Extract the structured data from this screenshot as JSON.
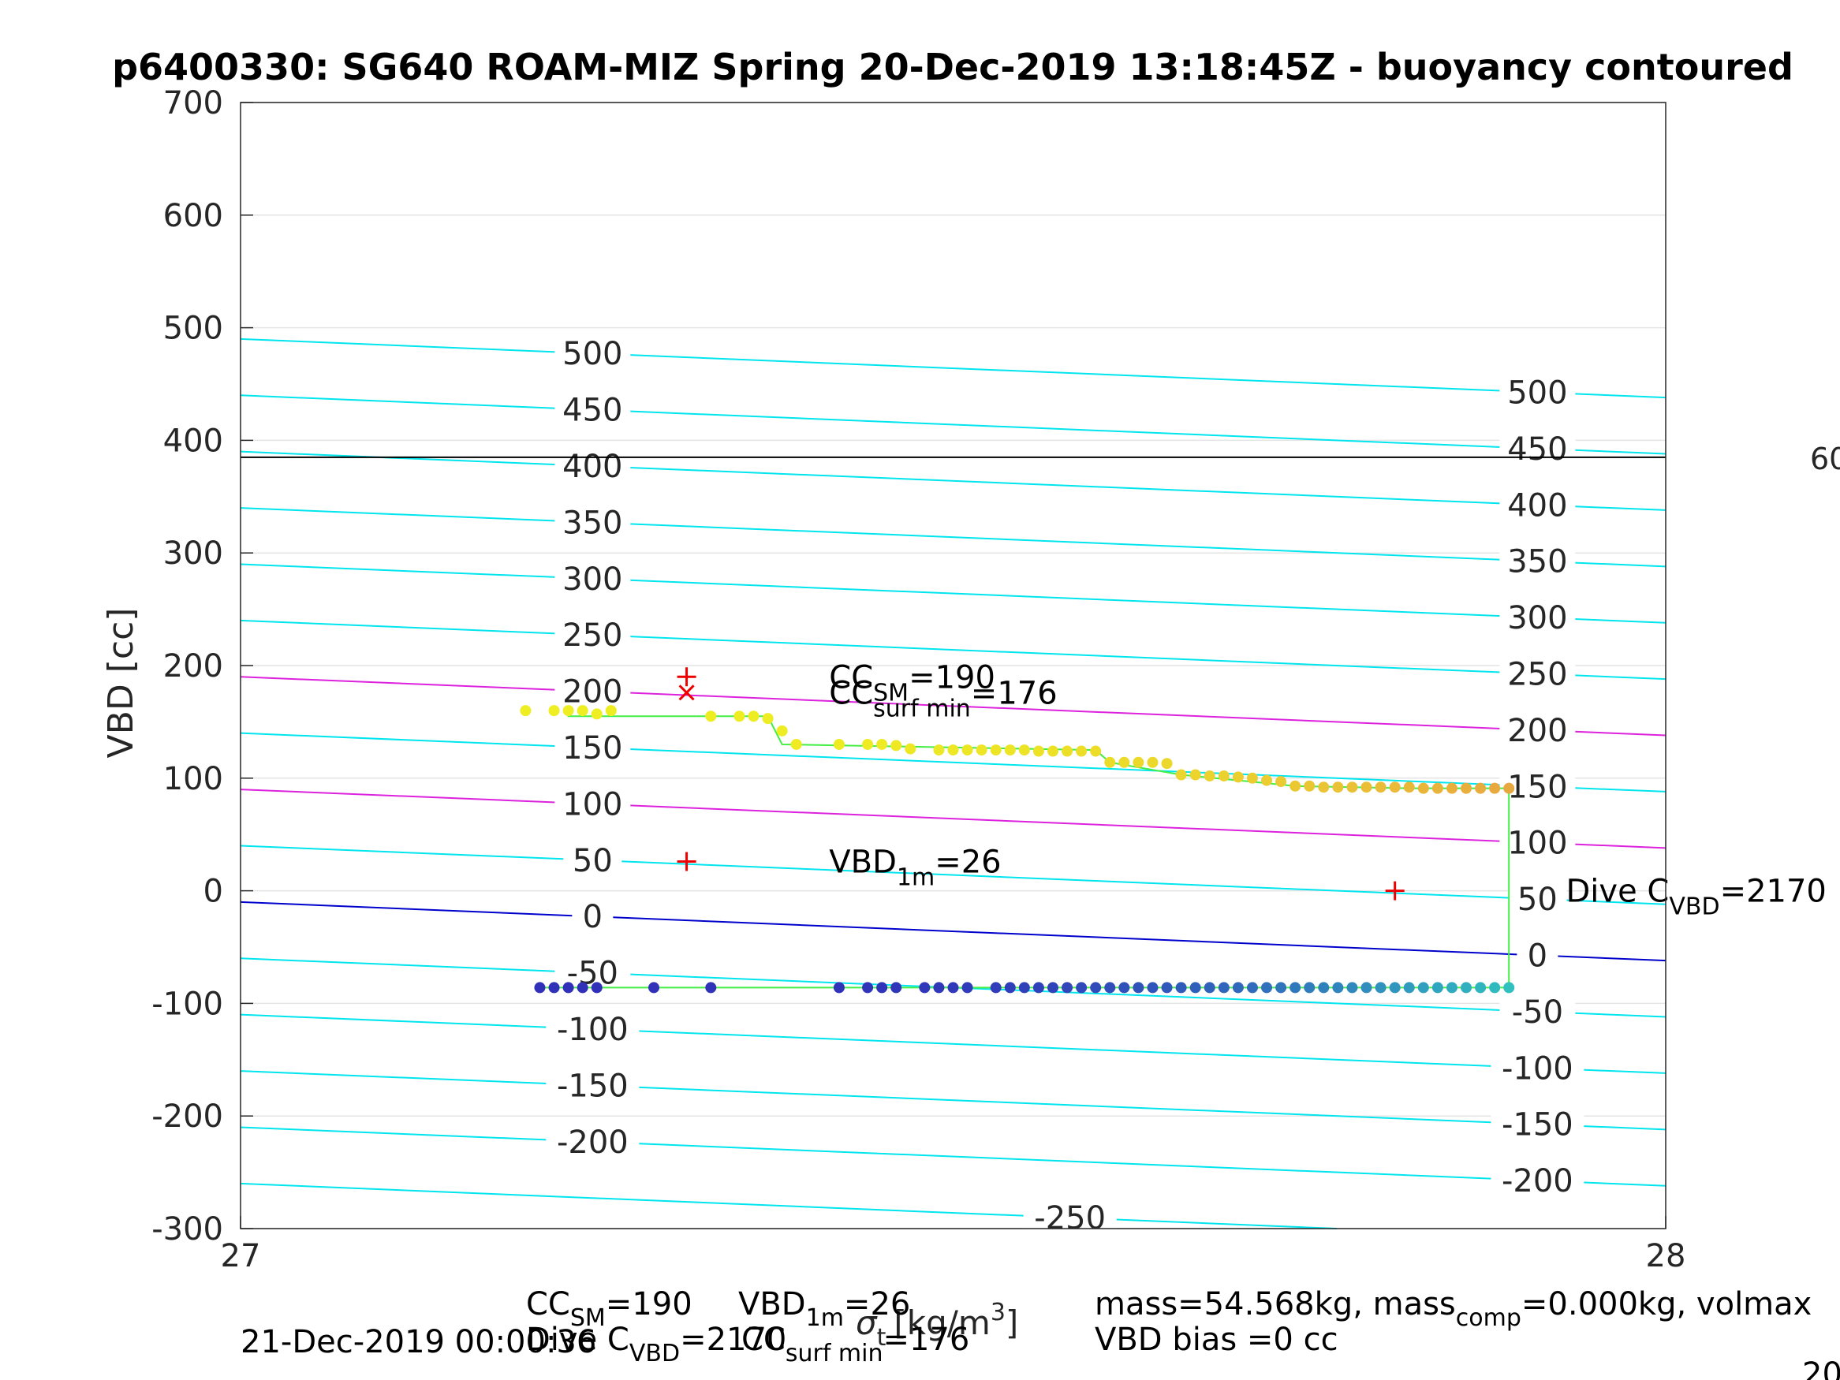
{
  "chart_data": {
    "type": "scatter",
    "title": "p6400330: SG640 ROAM-MIZ Spring 20-Dec-2019 13:18:45Z - buoyancy contoured",
    "ylabel": "VBD [cc]",
    "xlabel": "σ",
    "xlabel_sub": "t",
    "xlabel_unit": "[kg/m",
    "xlabel_unit_sup": "3",
    "xlabel_unit_end": "]",
    "xlim": [
      27,
      28
    ],
    "ylim": [
      -300,
      700
    ],
    "xticks": [
      "27",
      "28"
    ],
    "yticks": [
      700,
      600,
      500,
      400,
      300,
      200,
      100,
      0,
      -100,
      -200,
      -300
    ],
    "grid": true,
    "horizontal_line": {
      "y": 385,
      "label": "60",
      "color": "#000000"
    },
    "contour_labels_left": [
      "500",
      "450",
      "400",
      "350",
      "300",
      "250",
      "200",
      "150",
      "100",
      "50",
      "0",
      "-50",
      "-100",
      "-150",
      "-200"
    ],
    "contour_labels_right": [
      "500",
      "450",
      "400",
      "350",
      "300",
      "250",
      "200",
      "150",
      "100",
      "50",
      "0",
      "-50",
      "-100",
      "-150",
      "-200"
    ],
    "contour_label_bottom": "-250",
    "contours": {
      "levels": [
        500,
        450,
        400,
        350,
        300,
        250,
        200,
        150,
        100,
        50,
        0,
        -50,
        -100,
        -150,
        -200,
        -250
      ],
      "left_y": [
        490,
        440,
        390,
        340,
        290,
        240,
        190,
        140,
        90,
        40,
        -10,
        -60,
        -110,
        -160,
        -210,
        -260
      ],
      "right_y": [
        438,
        388,
        338,
        288,
        238,
        188,
        138,
        88,
        38,
        -12,
        -62,
        -112,
        -162,
        -212,
        -262,
        -312
      ],
      "colors": {
        "default": "#00e5ee",
        "highlight": "#dd22dd",
        "neutral": "#0000cc"
      },
      "highlight_levels": [
        200,
        100
      ],
      "neutral_level": 0
    },
    "series": [
      {
        "name": "",
        "color_start": "#eeee22",
        "color_end": "#e8a840",
        "points": [
          [
            27.2,
            160
          ],
          [
            27.22,
            160
          ],
          [
            27.23,
            160
          ],
          [
            27.24,
            160
          ],
          [
            27.25,
            157
          ],
          [
            27.26,
            160
          ],
          [
            27.33,
            155
          ],
          [
            27.35,
            155
          ],
          [
            27.36,
            155
          ],
          [
            27.37,
            153
          ],
          [
            27.38,
            142
          ],
          [
            27.39,
            130
          ],
          [
            27.42,
            130
          ],
          [
            27.44,
            130
          ],
          [
            27.45,
            130
          ],
          [
            27.46,
            129
          ],
          [
            27.47,
            126
          ],
          [
            27.49,
            125
          ],
          [
            27.5,
            125
          ],
          [
            27.51,
            125
          ],
          [
            27.52,
            125
          ],
          [
            27.53,
            125
          ],
          [
            27.54,
            125
          ],
          [
            27.55,
            125
          ],
          [
            27.56,
            124
          ],
          [
            27.57,
            124
          ],
          [
            27.58,
            124
          ],
          [
            27.59,
            124
          ],
          [
            27.6,
            124
          ],
          [
            27.61,
            114
          ],
          [
            27.62,
            114
          ],
          [
            27.63,
            114
          ],
          [
            27.64,
            114
          ],
          [
            27.65,
            113
          ],
          [
            27.66,
            103
          ],
          [
            27.67,
            103
          ],
          [
            27.68,
            102
          ],
          [
            27.69,
            102
          ],
          [
            27.7,
            101
          ],
          [
            27.71,
            100
          ],
          [
            27.72,
            98
          ],
          [
            27.73,
            97
          ],
          [
            27.74,
            93
          ],
          [
            27.75,
            93
          ],
          [
            27.76,
            92
          ],
          [
            27.77,
            92
          ],
          [
            27.78,
            92
          ],
          [
            27.79,
            92
          ],
          [
            27.8,
            92
          ],
          [
            27.81,
            92
          ],
          [
            27.82,
            92
          ],
          [
            27.83,
            91
          ],
          [
            27.84,
            91
          ],
          [
            27.85,
            91
          ],
          [
            27.86,
            91
          ],
          [
            27.87,
            91
          ],
          [
            27.88,
            91
          ],
          [
            27.89,
            91
          ]
        ]
      },
      {
        "name": "",
        "color_start": "#3030b8",
        "color_end": "#30c0c0",
        "points": [
          [
            27.21,
            -86
          ],
          [
            27.22,
            -86
          ],
          [
            27.23,
            -86
          ],
          [
            27.24,
            -86
          ],
          [
            27.25,
            -86
          ],
          [
            27.29,
            -86
          ],
          [
            27.33,
            -86
          ],
          [
            27.42,
            -86
          ],
          [
            27.44,
            -86
          ],
          [
            27.45,
            -86
          ],
          [
            27.46,
            -86
          ],
          [
            27.48,
            -86
          ],
          [
            27.49,
            -86
          ],
          [
            27.5,
            -86
          ],
          [
            27.51,
            -86
          ],
          [
            27.53,
            -86
          ],
          [
            27.54,
            -86
          ],
          [
            27.55,
            -86
          ],
          [
            27.56,
            -86
          ],
          [
            27.57,
            -86
          ],
          [
            27.58,
            -86
          ],
          [
            27.59,
            -86
          ],
          [
            27.6,
            -86
          ],
          [
            27.61,
            -86
          ],
          [
            27.62,
            -86
          ],
          [
            27.63,
            -86
          ],
          [
            27.64,
            -86
          ],
          [
            27.65,
            -86
          ],
          [
            27.66,
            -86
          ],
          [
            27.67,
            -86
          ],
          [
            27.68,
            -86
          ],
          [
            27.69,
            -86
          ],
          [
            27.7,
            -86
          ],
          [
            27.71,
            -86
          ],
          [
            27.72,
            -86
          ],
          [
            27.73,
            -86
          ],
          [
            27.74,
            -86
          ],
          [
            27.75,
            -86
          ],
          [
            27.76,
            -86
          ],
          [
            27.77,
            -86
          ],
          [
            27.78,
            -86
          ],
          [
            27.79,
            -86
          ],
          [
            27.8,
            -86
          ],
          [
            27.81,
            -86
          ],
          [
            27.82,
            -86
          ],
          [
            27.83,
            -86
          ],
          [
            27.84,
            -86
          ],
          [
            27.85,
            -86
          ],
          [
            27.86,
            -86
          ],
          [
            27.87,
            -86
          ],
          [
            27.88,
            -86
          ],
          [
            27.89,
            -86
          ]
        ]
      }
    ],
    "trace_line": {
      "color": "#44ee44",
      "points": [
        [
          27.23,
          160
        ],
        [
          27.23,
          155
        ],
        [
          27.37,
          155
        ],
        [
          27.38,
          130
        ],
        [
          27.6,
          125
        ],
        [
          27.61,
          114
        ],
        [
          27.66,
          103
        ],
        [
          27.74,
          93
        ],
        [
          27.82,
          91
        ],
        [
          27.89,
          91
        ],
        [
          27.89,
          -86
        ],
        [
          27.21,
          -86
        ]
      ]
    },
    "markers": [
      {
        "x": 27.313,
        "y": 190,
        "symbol": "+",
        "color": "#ee0000"
      },
      {
        "x": 27.313,
        "y": 176,
        "symbol": "x",
        "color": "#ee0000"
      },
      {
        "x": 27.313,
        "y": 26,
        "symbol": "+",
        "color": "#ee0000"
      },
      {
        "x": 27.81,
        "y": 0,
        "symbol": "+",
        "color": "#ee0000"
      }
    ],
    "annotations": [
      {
        "text": "CC",
        "sub": "SM",
        "end": "=190",
        "x": 27.413,
        "y": 190
      },
      {
        "text": "CC",
        "sub": "surf min",
        "end": "=176",
        "x": 27.413,
        "y": 176
      },
      {
        "text": "VBD",
        "sub": "1m",
        "end": "=26",
        "x": 27.413,
        "y": 26
      },
      {
        "text": "Dive C",
        "sub": "VBD",
        "end": "=2170",
        "x": 27.93,
        "y": 0
      }
    ]
  },
  "footer": {
    "line1_cc": "CC",
    "line1_cc_sub": "SM",
    "line1_cc_end": "=190",
    "line1_vbd": "VBD",
    "line1_vbd_sub": "1m",
    "line1_vbd_end": "=26",
    "line2_dive": "Dive C",
    "line2_dive_sub": "VBD",
    "line2_dive_end": "=2170",
    "line2_cc": "CC",
    "line2_cc_sub": "surf min",
    "line2_cc_end": "=176",
    "mass_a": "mass=54.568kg, mass",
    "mass_sub": "comp",
    "mass_b": "=0.000kg, volmax",
    "bias": "VBD bias =0 cc",
    "timestamp": "21-Dec-2019 00:00:36",
    "right_edge": "20"
  }
}
